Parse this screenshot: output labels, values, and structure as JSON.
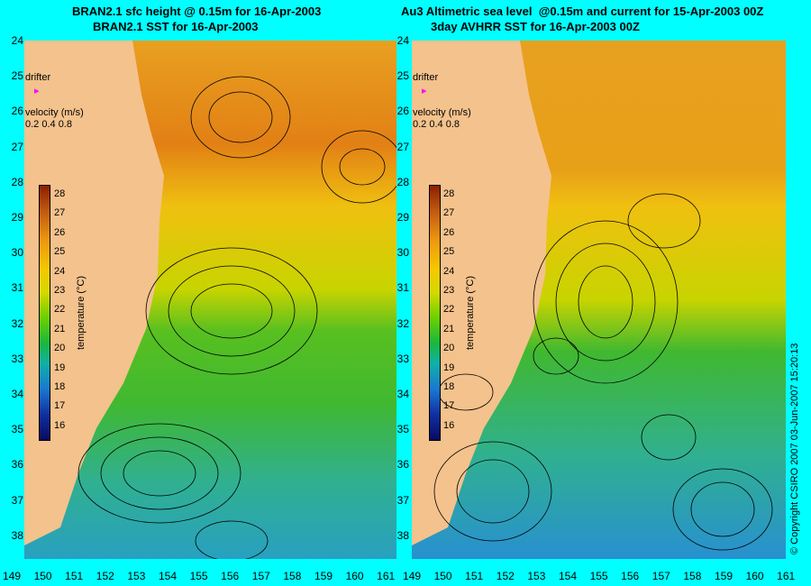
{
  "left_panel": {
    "title_line1": "BRAN2.1 sfc height @ 0.15m for 16-Apr-2003",
    "title_line2": "BRAN2.1 SST for 16-Apr-2003"
  },
  "right_panel": {
    "title_line1": "Au3 Altimetric sea level  @0.15m and current for 15-Apr-2003 00Z",
    "title_line2": "3day AVHRR SST for 16-Apr-2003 00Z"
  },
  "latitude_ticks": [
    "24",
    "25",
    "26",
    "27",
    "28",
    "29",
    "30",
    "31",
    "32",
    "33",
    "34",
    "35",
    "36",
    "37",
    "38"
  ],
  "longitude_ticks": [
    "149",
    "150",
    "151",
    "152",
    "153",
    "154",
    "155",
    "156",
    "157",
    "158",
    "159",
    "160",
    "161"
  ],
  "drifter_label": "drifter",
  "velocity": {
    "label": "velocity (m/s)",
    "scale": "0.2 0.4 0.8"
  },
  "colorbar": {
    "label": "temperature (°C)",
    "ticks": [
      "28",
      "27",
      "26",
      "25",
      "24",
      "23",
      "22",
      "21",
      "20",
      "19",
      "18",
      "17",
      "16"
    ]
  },
  "copyright": "© Copyright CSIRO 2007   03-Jun-2007 15:20:13",
  "colors": {
    "background": "#00ffff",
    "land": "#f4c28c",
    "warm": "#e88a10",
    "mid": "#e8d400",
    "cool": "#20b040",
    "cold": "#20a0c0",
    "drifter": "#ff00ff"
  }
}
